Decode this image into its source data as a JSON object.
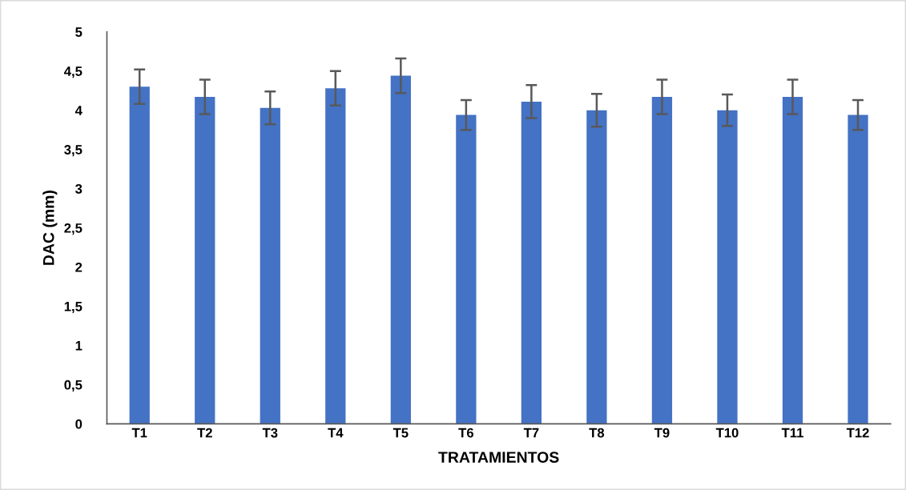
{
  "chart_data": {
    "type": "bar",
    "xlabel": "TRATAMIENTOS",
    "ylabel": "DAC (mm)",
    "categories": [
      "T1",
      "T2",
      "T3",
      "T4",
      "T5",
      "T6",
      "T7",
      "T8",
      "T9",
      "T10",
      "T11",
      "T12"
    ],
    "values": [
      4.3,
      4.17,
      4.03,
      4.28,
      4.44,
      3.94,
      4.11,
      4.0,
      4.17,
      4.0,
      4.17,
      3.94
    ],
    "errors": [
      0.22,
      0.22,
      0.21,
      0.22,
      0.22,
      0.19,
      0.21,
      0.21,
      0.22,
      0.2,
      0.22,
      0.19
    ],
    "color": "#4472c4",
    "ylim": [
      0,
      5
    ],
    "yticks": [
      0,
      {
        "value": 0.5,
        "label": "0,5"
      },
      1,
      {
        "value": 1.5,
        "label": "1,5"
      },
      2,
      {
        "value": 2.5,
        "label": "2,5"
      },
      3,
      {
        "value": 3.5,
        "label": "3,5"
      },
      4,
      {
        "value": 4.5,
        "label": "4,5"
      },
      5
    ],
    "grid": false
  }
}
